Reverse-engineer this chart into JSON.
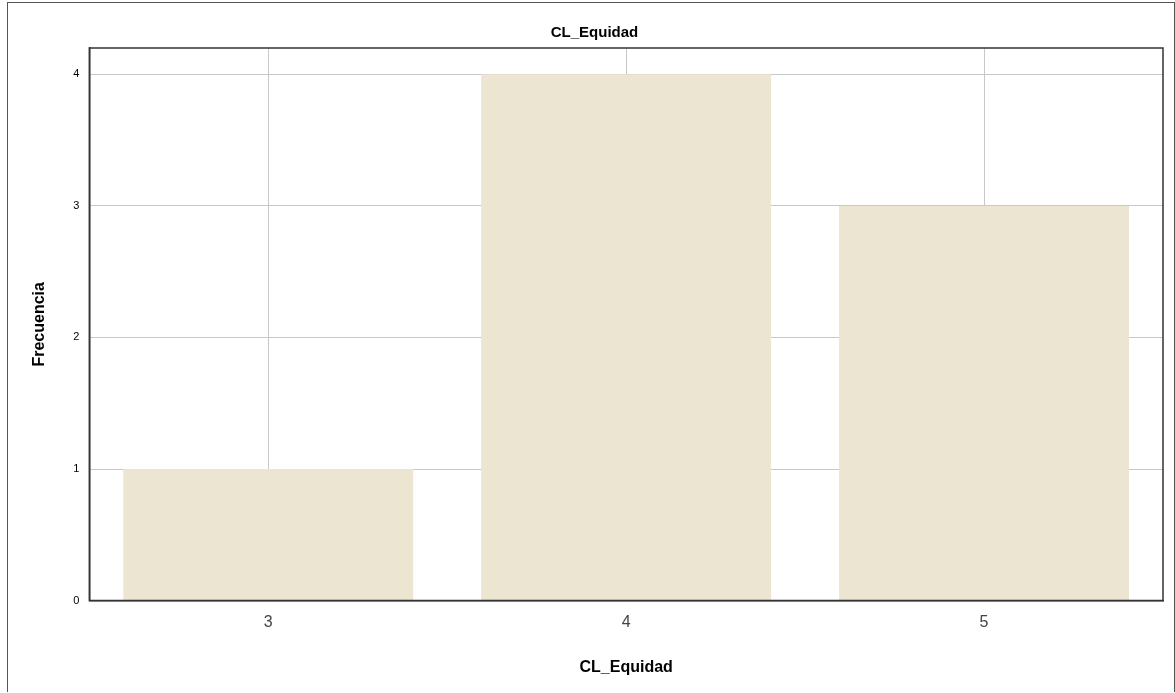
{
  "chart_data": {
    "type": "bar",
    "title": "CL_Equidad",
    "xlabel": "CL_Equidad",
    "ylabel": "Frecuencia",
    "categories": [
      "3",
      "4",
      "5"
    ],
    "values": [
      1,
      4,
      3
    ],
    "color": "#ebe5d1",
    "ylim": [
      0,
      4.2
    ],
    "yticks": [
      0,
      1,
      2,
      3,
      4
    ],
    "grid": true
  }
}
